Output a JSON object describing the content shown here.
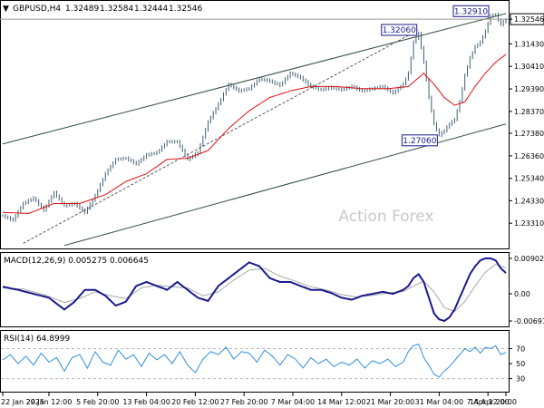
{
  "chart_data": [
    {
      "type": "candlestick",
      "header": {
        "arrow": "▼",
        "symbol": "GBPUSD,H4",
        "open": "1.32489",
        "high": "1.32584",
        "low": "1.32444",
        "close": "1.32546"
      },
      "watermark": "Action Forex",
      "ylim": [
        1.2225,
        1.3325
      ],
      "y_ticks": [
        "1.32546",
        "1.31430",
        "1.30410",
        "1.29390",
        "1.28370",
        "1.27380",
        "1.26360",
        "1.25340",
        "1.24330",
        "1.23310"
      ],
      "y_tick_values": [
        1.32546,
        1.3143,
        1.3041,
        1.2939,
        1.2837,
        1.2738,
        1.2636,
        1.2534,
        1.2433,
        1.2331
      ],
      "last_price_label": "1.32546",
      "annotations": [
        {
          "text": "1.32060",
          "value": 1.3206
        },
        {
          "text": "1.27060",
          "value": 1.2706
        },
        {
          "text": "1.32910",
          "value": 1.3291
        }
      ],
      "price_anchors": [
        [
          0,
          1.2365
        ],
        [
          4,
          1.2345
        ],
        [
          8,
          1.242
        ],
        [
          12,
          1.2445
        ],
        [
          16,
          1.239
        ],
        [
          20,
          1.247
        ],
        [
          24,
          1.241
        ],
        [
          28,
          1.242
        ],
        [
          32,
          1.238
        ],
        [
          36,
          1.2455
        ],
        [
          40,
          1.2555
        ],
        [
          44,
          1.262
        ],
        [
          48,
          1.2625
        ],
        [
          52,
          1.26
        ],
        [
          56,
          1.264
        ],
        [
          60,
          1.265
        ],
        [
          64,
          1.27
        ],
        [
          68,
          1.27
        ],
        [
          72,
          1.262
        ],
        [
          76,
          1.265
        ],
        [
          80,
          1.279
        ],
        [
          84,
          1.287
        ],
        [
          88,
          1.296
        ],
        [
          92,
          1.293
        ],
        [
          96,
          1.294
        ],
        [
          100,
          1.2985
        ],
        [
          104,
          1.2975
        ],
        [
          108,
          1.2955
        ],
        [
          112,
          1.301
        ],
        [
          116,
          1.299
        ],
        [
          120,
          1.295
        ],
        [
          124,
          1.2935
        ],
        [
          128,
          1.2945
        ],
        [
          132,
          1.2935
        ],
        [
          136,
          1.295
        ],
        [
          140,
          1.293
        ],
        [
          144,
          1.294
        ],
        [
          148,
          1.295
        ],
        [
          152,
          1.292
        ],
        [
          156,
          1.296
        ],
        [
          158,
          1.301
        ],
        [
          160,
          1.315
        ],
        [
          162,
          1.319
        ],
        [
          164,
          1.306
        ],
        [
          166,
          1.29
        ],
        [
          168,
          1.278
        ],
        [
          170,
          1.273
        ],
        [
          172,
          1.275
        ],
        [
          174,
          1.278
        ],
        [
          176,
          1.28
        ],
        [
          178,
          1.288
        ],
        [
          180,
          1.3
        ],
        [
          182,
          1.308
        ],
        [
          184,
          1.313
        ],
        [
          186,
          1.315
        ],
        [
          188,
          1.32
        ],
        [
          190,
          1.327
        ],
        [
          192,
          1.3275
        ],
        [
          194,
          1.323
        ],
        [
          196,
          1.3254
        ]
      ],
      "ma_anchors": [
        [
          0,
          1.238
        ],
        [
          10,
          1.2375
        ],
        [
          20,
          1.242
        ],
        [
          30,
          1.242
        ],
        [
          40,
          1.246
        ],
        [
          48,
          1.252
        ],
        [
          56,
          1.2555
        ],
        [
          64,
          1.262
        ],
        [
          72,
          1.2625
        ],
        [
          80,
          1.266
        ],
        [
          88,
          1.276
        ],
        [
          96,
          1.284
        ],
        [
          104,
          1.29
        ],
        [
          112,
          1.293
        ],
        [
          120,
          1.295
        ],
        [
          130,
          1.295
        ],
        [
          140,
          1.294
        ],
        [
          150,
          1.294
        ],
        [
          158,
          1.295
        ],
        [
          164,
          1.301
        ],
        [
          168,
          1.296
        ],
        [
          172,
          1.29
        ],
        [
          176,
          1.2865
        ],
        [
          180,
          1.288
        ],
        [
          184,
          1.295
        ],
        [
          188,
          1.301
        ],
        [
          192,
          1.306
        ],
        [
          196,
          1.3095
        ]
      ],
      "channel_upper": [
        [
          0,
          1.269
        ],
        [
          196,
          1.328
        ]
      ],
      "channel_lower": [
        [
          24,
          1.223
        ],
        [
          196,
          1.278
        ]
      ],
      "dashed_line": [
        [
          8,
          1.224
        ],
        [
          162,
          1.3206
        ]
      ]
    },
    {
      "type": "line",
      "title": "MACD(12,26,9) 0.005275 0.006645",
      "ylim": [
        -0.0076,
        0.0097
      ],
      "y_ticks": [
        "0.00902",
        "0.00",
        "-0.006915"
      ],
      "y_tick_values": [
        0.00902,
        0.0,
        -0.006915
      ],
      "series": [
        {
          "color": "#1a1a8c",
          "anchors": [
            [
              0,
              0.0018
            ],
            [
              6,
              0.001
            ],
            [
              12,
              0.0
            ],
            [
              18,
              -0.001
            ],
            [
              24,
              -0.004
            ],
            [
              28,
              -0.002
            ],
            [
              32,
              0.001
            ],
            [
              36,
              0.001
            ],
            [
              40,
              -0.0005
            ],
            [
              44,
              -0.003
            ],
            [
              48,
              -0.002
            ],
            [
              52,
              0.002
            ],
            [
              56,
              0.003
            ],
            [
              60,
              0.002
            ],
            [
              64,
              0.001
            ],
            [
              68,
              0.003
            ],
            [
              72,
              0.001
            ],
            [
              76,
              -0.001
            ],
            [
              80,
              -0.0018
            ],
            [
              84,
              0.002
            ],
            [
              88,
              0.004
            ],
            [
              92,
              0.006
            ],
            [
              96,
              0.008
            ],
            [
              100,
              0.007
            ],
            [
              104,
              0.004
            ],
            [
              108,
              0.003
            ],
            [
              112,
              0.003
            ],
            [
              116,
              0.002
            ],
            [
              120,
              0.001
            ],
            [
              124,
              0.001
            ],
            [
              128,
              0.0002
            ],
            [
              132,
              -0.001
            ],
            [
              136,
              -0.0015
            ],
            [
              140,
              -0.0005
            ],
            [
              144,
              0.0
            ],
            [
              148,
              0.0005
            ],
            [
              152,
              0.0
            ],
            [
              156,
              0.001
            ],
            [
              158,
              0.002
            ],
            [
              160,
              0.004
            ],
            [
              162,
              0.005
            ],
            [
              164,
              0.003
            ],
            [
              166,
              -0.001
            ],
            [
              168,
              -0.005
            ],
            [
              170,
              -0.0065
            ],
            [
              172,
              -0.0069
            ],
            [
              174,
              -0.006
            ],
            [
              176,
              -0.004
            ],
            [
              178,
              -0.001
            ],
            [
              180,
              0.002
            ],
            [
              182,
              0.005
            ],
            [
              184,
              0.007
            ],
            [
              186,
              0.0085
            ],
            [
              188,
              0.009
            ],
            [
              190,
              0.009
            ],
            [
              192,
              0.0085
            ],
            [
              194,
              0.0065
            ],
            [
              196,
              0.0053
            ]
          ]
        },
        {
          "color": "#a8a8a8",
          "anchors": [
            [
              0,
              0.0015
            ],
            [
              8,
              0.0012
            ],
            [
              16,
              -0.0002
            ],
            [
              24,
              -0.0022
            ],
            [
              30,
              -0.0012
            ],
            [
              36,
              0.0005
            ],
            [
              42,
              -0.0005
            ],
            [
              48,
              -0.0012
            ],
            [
              54,
              0.0015
            ],
            [
              60,
              0.0022
            ],
            [
              66,
              0.0018
            ],
            [
              72,
              0.0015
            ],
            [
              78,
              -0.0005
            ],
            [
              84,
              0.0005
            ],
            [
              90,
              0.0035
            ],
            [
              96,
              0.006
            ],
            [
              102,
              0.0065
            ],
            [
              108,
              0.0045
            ],
            [
              114,
              0.0032
            ],
            [
              120,
              0.0018
            ],
            [
              126,
              0.001
            ],
            [
              132,
              -0.0002
            ],
            [
              138,
              -0.0008
            ],
            [
              144,
              -0.0004
            ],
            [
              150,
              0.0002
            ],
            [
              156,
              0.0006
            ],
            [
              160,
              0.002
            ],
            [
              164,
              0.0032
            ],
            [
              168,
              0.0005
            ],
            [
              172,
              -0.0035
            ],
            [
              176,
              -0.0045
            ],
            [
              180,
              -0.002
            ],
            [
              184,
              0.002
            ],
            [
              188,
              0.0055
            ],
            [
              192,
              0.0075
            ],
            [
              196,
              0.0066
            ]
          ]
        }
      ]
    },
    {
      "type": "line",
      "title": "RSI(14) 64.8999",
      "ylim": [
        15,
        90
      ],
      "y_ticks": [
        "70",
        "50",
        "30"
      ],
      "y_tick_values": [
        70,
        50,
        30
      ],
      "series": [
        {
          "color": "#2f8ee0",
          "anchors": [
            [
              0,
              55
            ],
            [
              3,
              62
            ],
            [
              6,
              50
            ],
            [
              9,
              60
            ],
            [
              12,
              48
            ],
            [
              15,
              64
            ],
            [
              18,
              52
            ],
            [
              21,
              58
            ],
            [
              24,
              40
            ],
            [
              27,
              58
            ],
            [
              30,
              62
            ],
            [
              33,
              44
            ],
            [
              36,
              66
            ],
            [
              39,
              52
            ],
            [
              42,
              48
            ],
            [
              45,
              68
            ],
            [
              48,
              56
            ],
            [
              51,
              62
            ],
            [
              54,
              46
            ],
            [
              57,
              64
            ],
            [
              60,
              55
            ],
            [
              63,
              62
            ],
            [
              66,
              50
            ],
            [
              69,
              66
            ],
            [
              72,
              48
            ],
            [
              75,
              38
            ],
            [
              78,
              56
            ],
            [
              81,
              66
            ],
            [
              84,
              62
            ],
            [
              87,
              72
            ],
            [
              90,
              56
            ],
            [
              93,
              66
            ],
            [
              96,
              64
            ],
            [
              99,
              52
            ],
            [
              102,
              68
            ],
            [
              105,
              60
            ],
            [
              108,
              48
            ],
            [
              111,
              62
            ],
            [
              114,
              56
            ],
            [
              117,
              44
            ],
            [
              120,
              58
            ],
            [
              123,
              50
            ],
            [
              126,
              56
            ],
            [
              129,
              46
            ],
            [
              132,
              52
            ],
            [
              135,
              48
            ],
            [
              138,
              56
            ],
            [
              141,
              44
            ],
            [
              144,
              54
            ],
            [
              147,
              50
            ],
            [
              150,
              56
            ],
            [
              153,
              46
            ],
            [
              156,
              52
            ],
            [
              158,
              66
            ],
            [
              160,
              74
            ],
            [
              162,
              76
            ],
            [
              164,
              58
            ],
            [
              166,
              48
            ],
            [
              168,
              36
            ],
            [
              170,
              32
            ],
            [
              172,
              40
            ],
            [
              174,
              46
            ],
            [
              176,
              54
            ],
            [
              178,
              62
            ],
            [
              180,
              70
            ],
            [
              182,
              66
            ],
            [
              184,
              72
            ],
            [
              186,
              64
            ],
            [
              188,
              72
            ],
            [
              190,
              70
            ],
            [
              192,
              74
            ],
            [
              194,
              62
            ],
            [
              196,
              65
            ]
          ]
        }
      ]
    }
  ],
  "x_axis": {
    "labels": [
      "22 Jan 2025",
      "29 Jan 12:00",
      "5 Feb 20:00",
      "13 Feb 04:00",
      "20 Feb 12:00",
      "27 Feb 20:00",
      "7 Mar 04:00",
      "14 Mar 12:00",
      "21 Mar 20:00",
      "31 Mar 04:00",
      "7 Apr 12:00",
      "14 Apr 20:00"
    ],
    "label_positions": [
      0,
      18,
      37,
      56,
      75,
      94,
      113,
      132,
      151,
      170,
      189,
      196
    ]
  }
}
